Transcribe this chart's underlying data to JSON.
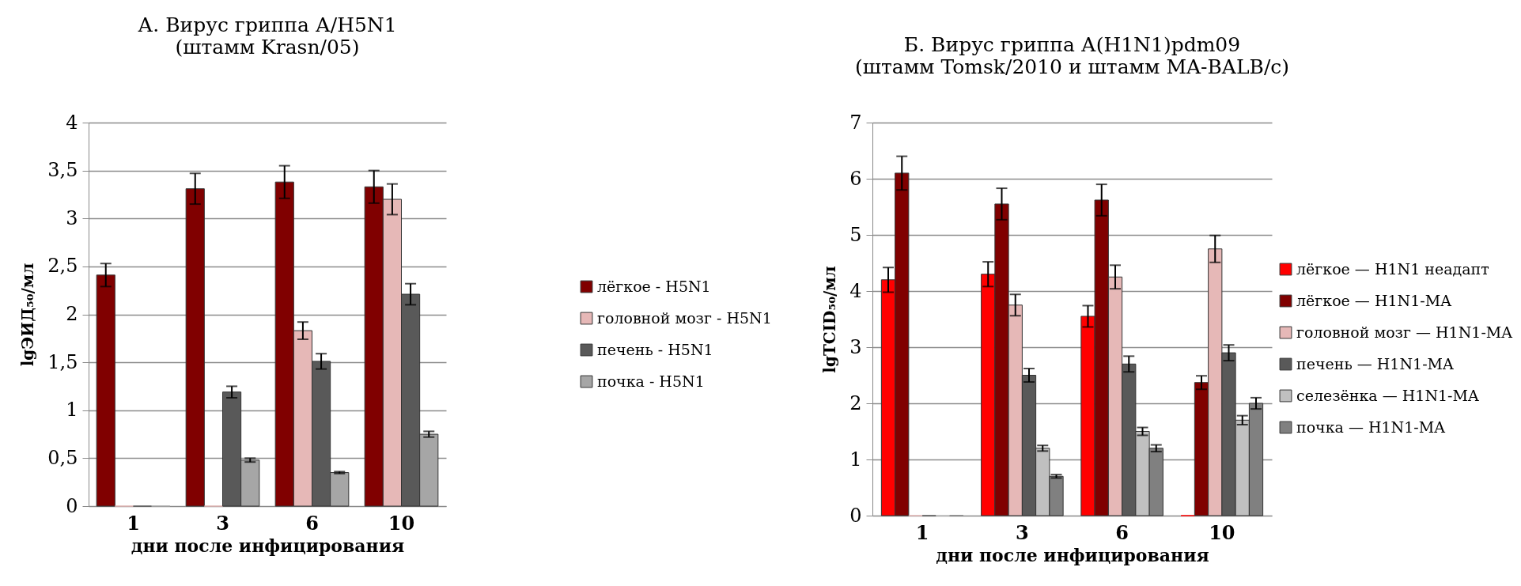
{
  "chart_data": [
    {
      "type": "bar",
      "title": "А.        Вирус гриппа А/H5N1",
      "subtitle": "(штамм Krasn/05)",
      "xlabel": "дни после инфицирования",
      "ylabel": "lgЭИД₅₀/мл",
      "categories": [
        "1",
        "3",
        "6",
        "10"
      ],
      "ylim": [
        0,
        4
      ],
      "yticks": [
        0,
        {
          "value": 0.5,
          "label": "0,5"
        },
        1,
        {
          "value": 1.5,
          "label": "1,5"
        },
        2,
        {
          "value": 2.5,
          "label": "2,5"
        },
        3,
        {
          "value": 3.5,
          "label": "3,5"
        },
        4
      ],
      "grid": "y",
      "legend": "right",
      "series": [
        {
          "name": "лёгкое - H5N1",
          "color": "#800000",
          "values": [
            2.41,
            3.31,
            3.38,
            3.33
          ],
          "errors": [
            0.12,
            0.16,
            0.17,
            0.17
          ]
        },
        {
          "name": "головной мозг - H5N1",
          "color": "#e6b8b7",
          "values": [
            0,
            0,
            1.83,
            3.2
          ],
          "errors": [
            null,
            null,
            0.09,
            0.16
          ]
        },
        {
          "name": "печень - H5N1",
          "color": "#595959",
          "values": [
            0,
            1.19,
            1.51,
            2.21
          ],
          "errors": [
            null,
            0.06,
            0.08,
            0.11
          ]
        },
        {
          "name": "почка - H5N1",
          "color": "#a6a6a6",
          "values": [
            0,
            0.48,
            0.35,
            0.75
          ],
          "errors": [
            null,
            0.02,
            0.01,
            0.03
          ]
        }
      ]
    },
    {
      "type": "bar",
      "title": "Б.        Вирус гриппа А(H1N1)pdm09",
      "subtitle": "(штамм Tomsk/2010 и штамм MA-BALB/c)",
      "xlabel": "дни после инфицирования",
      "ylabel": "lgTCID₅₀/мл",
      "categories": [
        "1",
        "3",
        "6",
        "10"
      ],
      "ylim": [
        0,
        7
      ],
      "yticks": [
        0,
        1,
        2,
        3,
        4,
        5,
        6,
        7
      ],
      "grid": "y",
      "legend": "right",
      "series": [
        {
          "name": "лёгкое — H1N1 неадапт",
          "color": "#ff0000",
          "values": [
            4.2,
            4.3,
            3.55,
            0
          ],
          "errors": [
            0.22,
            0.22,
            0.19,
            null
          ]
        },
        {
          "name": "лёгкое —  H1N1-MA",
          "color": "#800000",
          "values": [
            6.1,
            5.55,
            5.62,
            2.37
          ],
          "errors": [
            0.3,
            0.28,
            0.28,
            0.12
          ]
        },
        {
          "name": "головной мозг — H1N1-MA",
          "color": "#e6b8b7",
          "values": [
            0,
            3.75,
            4.25,
            4.75
          ],
          "errors": [
            null,
            0.19,
            0.21,
            0.24
          ]
        },
        {
          "name": "печень — H1N1-MA",
          "color": "#595959",
          "values": [
            0,
            2.5,
            2.7,
            2.9
          ],
          "errors": [
            null,
            0.12,
            0.14,
            0.14
          ]
        },
        {
          "name": "селезёнка — H1N1-MA",
          "color": "#c0c0c0",
          "values": [
            0,
            1.2,
            1.5,
            1.7
          ],
          "errors": [
            null,
            0.05,
            0.07,
            0.08
          ]
        },
        {
          "name": "почка — H1N1-MA",
          "color": "#808080",
          "values": [
            0,
            0.7,
            1.2,
            2.0
          ],
          "errors": [
            null,
            0.03,
            0.06,
            0.1
          ]
        }
      ]
    }
  ]
}
